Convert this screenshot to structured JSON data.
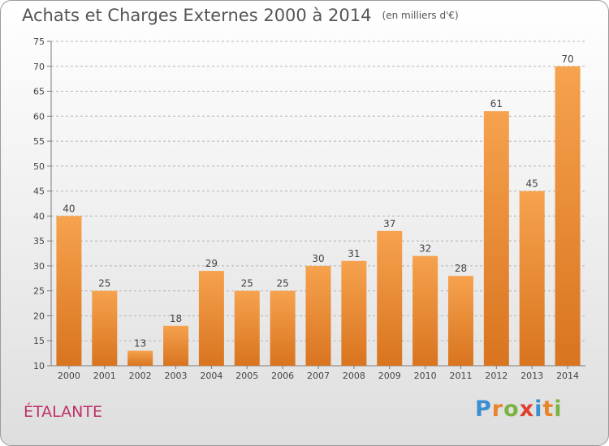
{
  "header": {
    "title": "Achats et Charges Externes 2000 à 2014",
    "unit": "(en milliers d'€)"
  },
  "commune": "ÉTALANTE",
  "logo": {
    "letters": [
      {
        "char": "P",
        "color": "#3a8fd1"
      },
      {
        "char": "r",
        "color": "#e8842a"
      },
      {
        "char": "o",
        "color": "#7bb342"
      },
      {
        "char": "x",
        "color": "#e0402f"
      },
      {
        "char": "i",
        "color": "#3a8fd1"
      },
      {
        "char": "t",
        "color": "#e8842a"
      },
      {
        "char": "i",
        "color": "#7bb342"
      }
    ]
  },
  "chart_data": {
    "type": "bar",
    "title": "Achats et Charges Externes 2000 à 2014",
    "subtitle": "(en milliers d'€)",
    "categories": [
      "2000",
      "2001",
      "2002",
      "2003",
      "2004",
      "2005",
      "2006",
      "2007",
      "2008",
      "2009",
      "2010",
      "2011",
      "2012",
      "2013",
      "2014"
    ],
    "values": [
      40,
      25,
      13,
      18,
      29,
      25,
      25,
      30,
      31,
      37,
      32,
      28,
      61,
      45,
      70
    ],
    "ylim": [
      10,
      75
    ],
    "yticks": [
      10,
      15,
      20,
      25,
      30,
      35,
      40,
      45,
      50,
      55,
      60,
      65,
      70,
      75
    ],
    "grid": true,
    "bar_color_light": "#f6a24e",
    "bar_color_dark": "#d9741f",
    "grid_color": "#b4b4b4",
    "axis_color": "#7a7a7a"
  }
}
